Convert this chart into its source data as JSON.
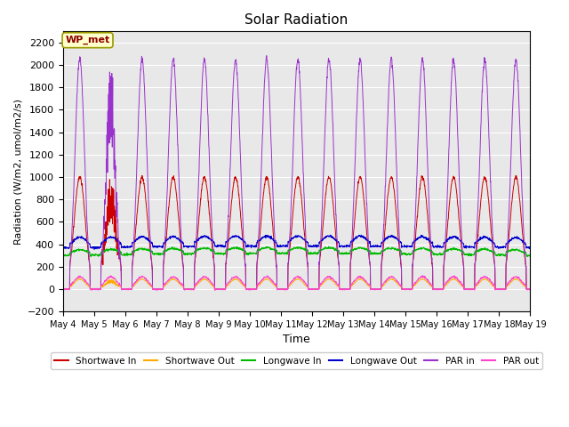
{
  "title": "Solar Radiation",
  "xlabel": "Time",
  "ylabel": "Radiation (W/m2, umol/m2/s)",
  "ylim": [
    -200,
    2300
  ],
  "yticks": [
    -200,
    0,
    200,
    400,
    600,
    800,
    1000,
    1200,
    1400,
    1600,
    1800,
    2000,
    2200
  ],
  "start_day": 4,
  "end_day": 19,
  "n_days": 15,
  "station_label": "WP_met",
  "plot_bg_color": "#e8e8e8",
  "fig_bg_color": "#ffffff",
  "legend_entries": [
    {
      "label": "Shortwave In",
      "color": "#cc0000"
    },
    {
      "label": "Shortwave Out",
      "color": "#ffaa00"
    },
    {
      "label": "Longwave In",
      "color": "#00bb00"
    },
    {
      "label": "Longwave Out",
      "color": "#0000cc"
    },
    {
      "label": "PAR in",
      "color": "#9933cc"
    },
    {
      "label": "PAR out",
      "color": "#ff44cc"
    }
  ],
  "sw_in_peak": 1000,
  "lw_in_base": 300,
  "lw_in_amp": 50,
  "lw_out_base": 370,
  "lw_out_amp": 90,
  "par_in_peak": 2050,
  "par_out_peak": 110
}
